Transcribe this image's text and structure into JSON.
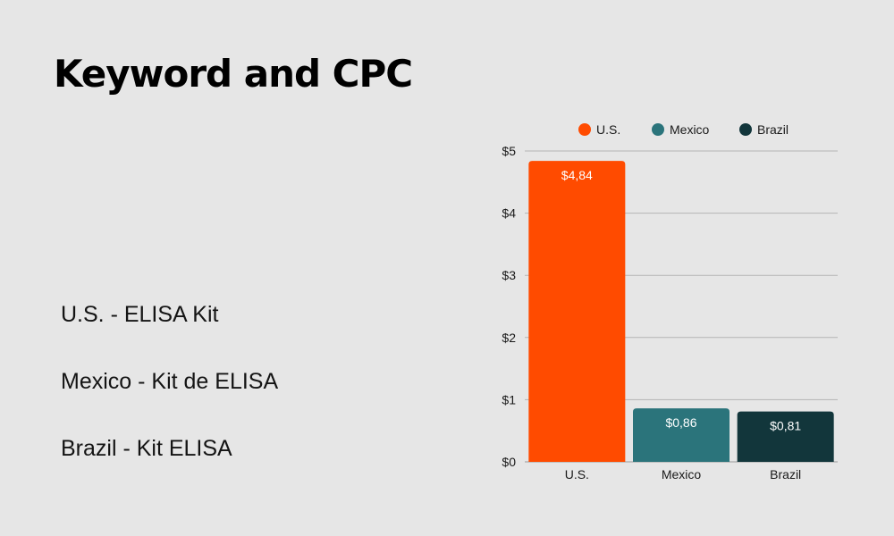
{
  "page": {
    "title": "Keyword and CPC",
    "keywords": [
      "U.S. - ELISA Kit",
      "Mexico - Kit de ELISA",
      "Brazil - Kit ELISA"
    ]
  },
  "chart_data": {
    "type": "bar",
    "title": "",
    "xlabel": "",
    "ylabel": "",
    "categories": [
      "U.S.",
      "Mexico",
      "Brazil"
    ],
    "values": [
      4.84,
      0.86,
      0.81
    ],
    "data_labels": [
      "$4,84",
      "$0,86",
      "$0,81"
    ],
    "colors": [
      "#ff4b00",
      "#2b747b",
      "#12363b"
    ],
    "legend": [
      "U.S.",
      "Mexico",
      "Brazil"
    ],
    "legend_position": "top",
    "ylim": [
      0,
      5
    ],
    "yticks": [
      0,
      1,
      2,
      3,
      4,
      5
    ],
    "ytick_labels": [
      "$0",
      "$1",
      "$2",
      "$3",
      "$4",
      "$5"
    ],
    "grid": true
  }
}
